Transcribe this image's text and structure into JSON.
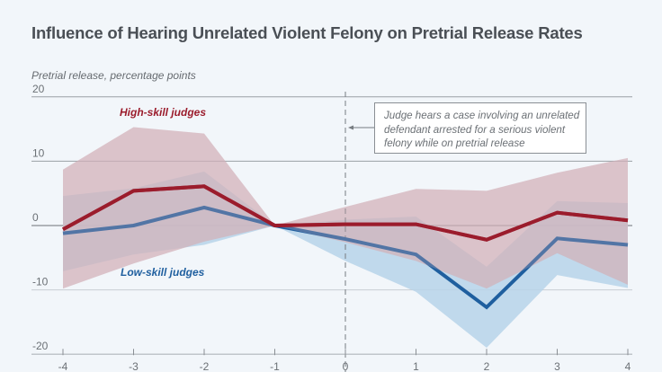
{
  "chart_data": {
    "type": "line",
    "title": "Influence of Hearing Unrelated Violent Felony on Pretrial Release Rates",
    "ylabel": "Pretrial release, percentage points",
    "xlabel": "",
    "x": [
      -4,
      -3,
      -2,
      -1,
      0,
      1,
      2,
      3,
      4
    ],
    "xticks": [
      "-4",
      "-3",
      "-2",
      "-1",
      "0",
      "1",
      "2",
      "3",
      "4"
    ],
    "yticks": [
      "20",
      "10",
      "0",
      "-10",
      "-20"
    ],
    "ytick_values": [
      20,
      10,
      0,
      -10,
      -20
    ],
    "ylim": [
      -20,
      20
    ],
    "xlim": [
      -4,
      4
    ],
    "grid": true,
    "event_line_x": 0,
    "annotation": "Judge hears a case involving an unrelated defendant arrested for a serious violent felony while on pretrial release",
    "series": [
      {
        "name": "Low-skill judges",
        "color": "#1f5f9f",
        "band_color": "#b7d3e9",
        "values": [
          -1.2,
          0.0,
          2.8,
          0.0,
          -2.1,
          -4.5,
          -12.7,
          -2.0,
          -3.0
        ],
        "ci_upper": [
          4.6,
          5.8,
          8.4,
          0.0,
          0.9,
          1.4,
          -6.4,
          3.8,
          3.5
        ],
        "ci_lower": [
          -7.1,
          -4.5,
          -3.0,
          0.0,
          -5.5,
          -10.3,
          -19.0,
          -7.7,
          -9.7
        ]
      },
      {
        "name": "High-skill judges",
        "color": "#9b1c2c",
        "band_color": "#d9b6bc",
        "values": [
          -0.6,
          5.4,
          6.1,
          0.0,
          0.2,
          0.2,
          -2.2,
          2.0,
          0.8
        ],
        "ci_upper": [
          8.7,
          15.3,
          14.3,
          0.0,
          2.9,
          5.7,
          5.4,
          8.2,
          10.5
        ],
        "ci_lower": [
          -9.8,
          -5.9,
          -2.5,
          0.0,
          -2.6,
          -5.5,
          -9.8,
          -4.3,
          -9.2
        ]
      }
    ]
  }
}
